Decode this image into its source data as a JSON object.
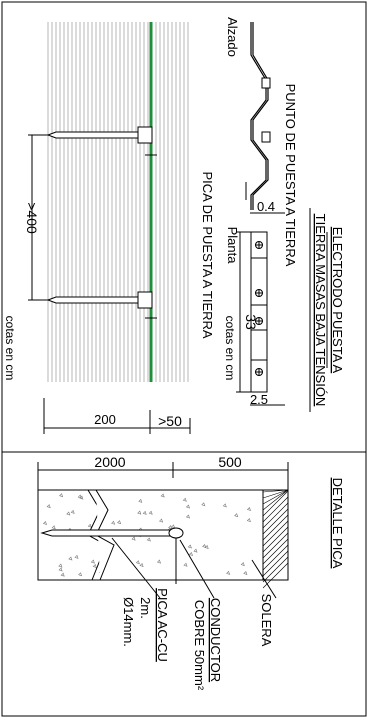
{
  "title": {
    "line1": "ELECTRODO PUESTA A",
    "line2": "TIERRA MASAS BAJA TENSIÓN"
  },
  "alzado": {
    "label": "Alzado",
    "punto_label": "PUNTO DE PUESTA A TIERRA",
    "dim_04": "0.4"
  },
  "planta": {
    "label": "Planta",
    "dim_33": "33",
    "dim_25": "2.5",
    "cotas": "cotas en cm"
  },
  "main": {
    "pica_label": "PICA DE PUESTA A TIERRA",
    "dim_400": ">400",
    "dim_200": "200",
    "dim_50": ">50",
    "cotas": "cotas en cm"
  },
  "detalle": {
    "title": "DETALLE PICA",
    "dim_2000": "2000",
    "dim_500": "500",
    "solera": "SOLERA",
    "conductor_1": "CONDUCTOR",
    "conductor_2": "COBRE 50mm²",
    "pica_1": "PICA AC-CU",
    "pica_2": "2m.",
    "pica_3": "Ø14mm."
  },
  "colors": {
    "conductor_green": "#1f8f3a",
    "line": "#000000",
    "hatch_lines": "#999999"
  }
}
